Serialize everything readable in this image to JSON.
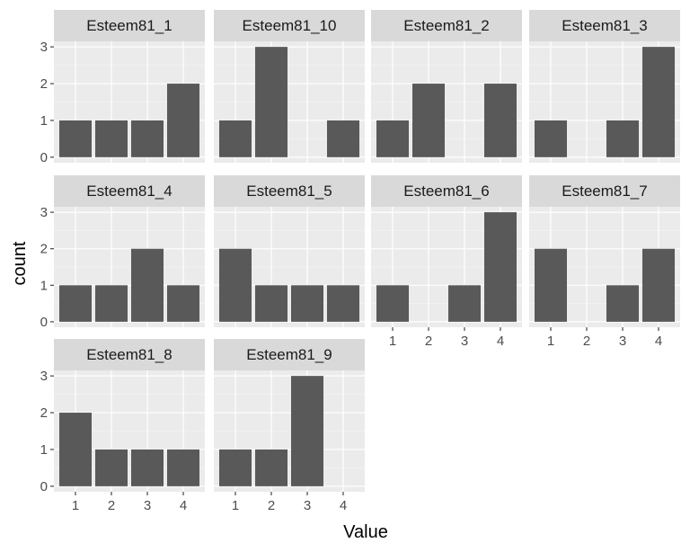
{
  "chart_data": {
    "type": "bar",
    "facet": "wrap",
    "xlabel": "Value",
    "ylabel": "count",
    "categories": [
      "1",
      "2",
      "3",
      "4"
    ],
    "ylim": [
      0,
      3
    ],
    "y_ticks": [
      "0",
      "1",
      "2",
      "3"
    ],
    "grid": true,
    "colors": {
      "bar": "#595959",
      "panel_bg": "#ebebeb",
      "grid_major": "#ffffff",
      "strip_bg": "#d9d9d9"
    },
    "panels": [
      {
        "name": "Esteem81_1",
        "values": [
          1,
          1,
          1,
          2
        ]
      },
      {
        "name": "Esteem81_10",
        "values": [
          1,
          3,
          0,
          1
        ]
      },
      {
        "name": "Esteem81_2",
        "values": [
          1,
          2,
          0,
          2
        ]
      },
      {
        "name": "Esteem81_3",
        "values": [
          1,
          0,
          1,
          3
        ]
      },
      {
        "name": "Esteem81_4",
        "values": [
          1,
          1,
          2,
          1
        ]
      },
      {
        "name": "Esteem81_5",
        "values": [
          2,
          1,
          1,
          1
        ]
      },
      {
        "name": "Esteem81_6",
        "values": [
          1,
          0,
          1,
          3
        ]
      },
      {
        "name": "Esteem81_7",
        "values": [
          2,
          0,
          1,
          2
        ]
      },
      {
        "name": "Esteem81_8",
        "values": [
          2,
          1,
          1,
          1
        ]
      },
      {
        "name": "Esteem81_9",
        "values": [
          1,
          1,
          3,
          0
        ]
      }
    ]
  }
}
